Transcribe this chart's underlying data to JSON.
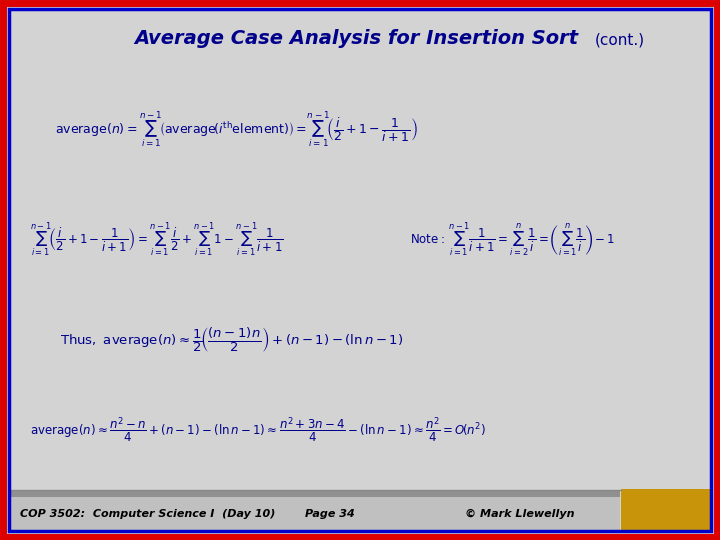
{
  "bg_color": "#d3d3d3",
  "border_outer_color": "#dd0000",
  "border_inner_color": "#0000cc",
  "title_main": "Average Case Analysis for Insertion Sort ",
  "title_cont": "(cont.)",
  "title_color": "#00008B",
  "formula_color": "#00008B",
  "footer_bg_light": "#c8c8c8",
  "footer_bg_dark": "#a0a0a0",
  "footer_text_left": "COP 3502:  Computer Science I  (Day 10)",
  "footer_text_mid": "Page 34",
  "footer_text_right": "© Mark Llewellyn",
  "footer_color": "#000000",
  "bird_color": "#c8940a"
}
